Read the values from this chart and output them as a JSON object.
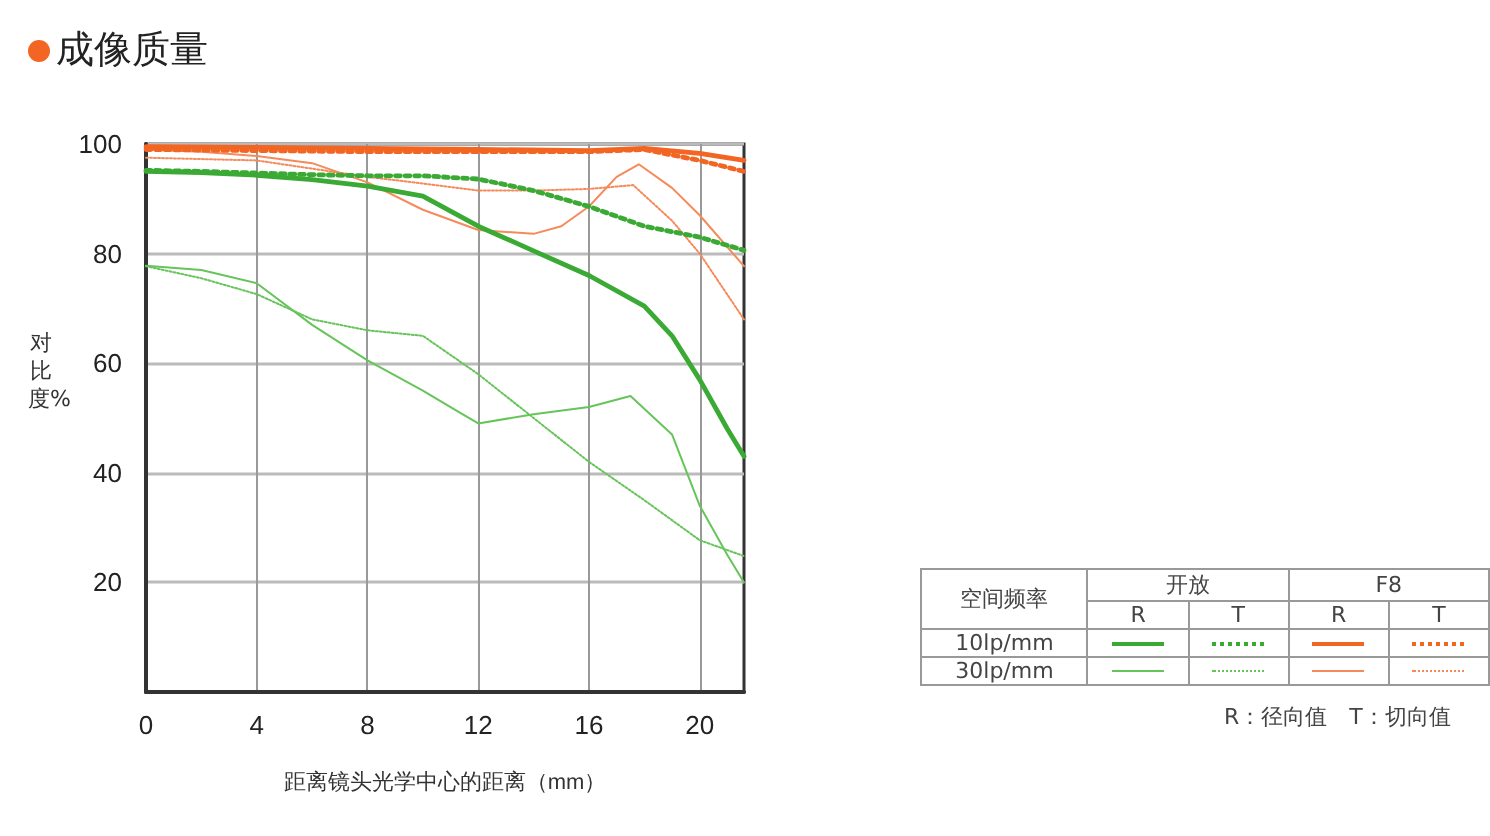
{
  "chart_data": {
    "type": "line",
    "title": "成像质量",
    "xlabel": "距离镜头光学中心的距离（mm）",
    "ylabel": "对比度%",
    "xlim": [
      0,
      21.6
    ],
    "xticks": [
      0,
      4,
      8,
      12,
      16,
      20
    ],
    "ylim": [
      0,
      100
    ],
    "yticks": [
      20,
      40,
      60,
      80,
      100
    ],
    "grid": true,
    "marker": "none",
    "series": [
      {
        "color": "#3aaa35",
        "line_style": "solid",
        "x": [
          0,
          2,
          4,
          6,
          8,
          10,
          12,
          14,
          16,
          18,
          19,
          20,
          21,
          21.6
        ],
        "values": [
          95,
          94.8,
          94.3,
          93.5,
          92.3,
          90.5,
          85,
          80.5,
          76,
          70.4,
          65,
          57,
          48,
          43
        ]
      },
      {
        "color": "#3aaa35",
        "line_style": "dotted",
        "x": [
          0,
          2,
          4,
          6,
          8,
          10,
          12,
          14,
          16,
          18,
          20,
          21.6
        ],
        "values": [
          95.2,
          95,
          94.7,
          94.4,
          94.2,
          94.2,
          93.6,
          91.5,
          88.6,
          85,
          83,
          80.6
        ]
      },
      {
        "color": "#f26522",
        "line_style": "solid",
        "x": [
          0,
          4,
          8,
          12,
          16,
          18,
          20,
          21.6
        ],
        "values": [
          99.5,
          99.4,
          99.2,
          99,
          98.8,
          99.2,
          98.3,
          97
        ]
      },
      {
        "color": "#f26522",
        "line_style": "dotted",
        "x": [
          0,
          4,
          8,
          12,
          16,
          18,
          20,
          21.6
        ],
        "values": [
          99,
          98.8,
          98.6,
          98.6,
          98.6,
          99,
          97,
          95
        ]
      },
      {
        "color": "#66c45a",
        "line_style": "solid",
        "x": [
          0,
          2,
          4,
          6,
          8,
          10,
          11,
          12,
          14,
          16,
          17.5,
          19,
          20,
          21,
          21.6
        ],
        "values": [
          77.8,
          77,
          74.6,
          67,
          60.5,
          55,
          52,
          49,
          50.7,
          52,
          54,
          47,
          34,
          25,
          20
        ]
      },
      {
        "color": "#66c45a",
        "line_style": "dotted",
        "x": [
          0,
          2,
          4,
          6,
          8,
          10,
          12,
          14,
          16,
          18,
          20,
          21.6
        ],
        "values": [
          77.7,
          75.5,
          72.6,
          68,
          66,
          65,
          58,
          50,
          42,
          35,
          27.7,
          24.8
        ]
      },
      {
        "color": "#f58a5a",
        "line_style": "solid",
        "x": [
          0,
          2,
          4,
          6,
          8,
          10,
          12,
          14,
          15,
          16,
          17,
          17.8,
          19,
          20,
          21.6
        ],
        "values": [
          99,
          98.6,
          97.8,
          96.5,
          93,
          88,
          84.3,
          83.6,
          85,
          88.6,
          94,
          96.3,
          92,
          87,
          77.7
        ]
      },
      {
        "color": "#f58a5a",
        "line_style": "dotted",
        "x": [
          0,
          4,
          8,
          10,
          12,
          14,
          16,
          17.6,
          19,
          20,
          21.6
        ],
        "values": [
          97.5,
          97,
          94,
          92.8,
          91.5,
          91.5,
          91.8,
          92.5,
          86,
          80,
          68
        ]
      }
    ],
    "annotations": [
      "空间频率",
      "开放",
      "F8",
      "R",
      "T",
      "R",
      "T",
      "10lp/mm",
      "30lp/mm",
      "R：径向值　T：切向值"
    ]
  }
}
